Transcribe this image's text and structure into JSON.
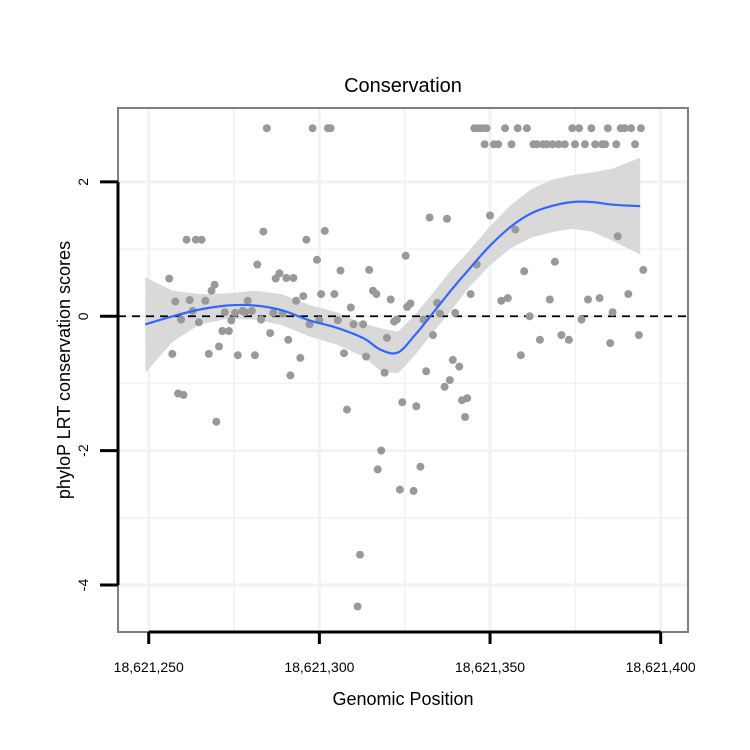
{
  "chart_data": {
    "type": "scatter",
    "title": "Conservation",
    "xlabel": "Genomic Position",
    "ylabel": "phyloP LRT conservation scores",
    "xlim": [
      18621241,
      18621408
    ],
    "ylim": [
      -4.7,
      3.1
    ],
    "x_ticks": [
      {
        "value": 18621250,
        "label": "18,621,250"
      },
      {
        "value": 18621300,
        "label": "18,621,300"
      },
      {
        "value": 18621350,
        "label": "18,621,350"
      },
      {
        "value": 18621400,
        "label": "18,621,400"
      }
    ],
    "y_ticks": [
      {
        "value": 2,
        "label": "2"
      },
      {
        "value": 0,
        "label": "0"
      },
      {
        "value": -2,
        "label": "-2"
      },
      {
        "value": -4,
        "label": "-4"
      }
    ],
    "x_minor_grid": [
      18621275,
      18621325,
      18621375
    ],
    "y_minor_grid": [
      1,
      -1,
      -3
    ],
    "reference_line": {
      "y": 0,
      "style": "dashed"
    },
    "colors": {
      "point": "#999999",
      "line": "#3366FF",
      "ribbon": "#D9D9D9",
      "panel_border": "#7F7F7F",
      "grid": "#F2F2F2",
      "reference": "#000000"
    },
    "points": [
      [
        18621256.0,
        0.56
      ],
      [
        18621256.9,
        -0.56
      ],
      [
        18621257.8,
        0.22
      ],
      [
        18621258.6,
        -1.15
      ],
      [
        18621259.5,
        -0.05
      ],
      [
        18621260.2,
        -1.17
      ],
      [
        18621261.1,
        1.14
      ],
      [
        18621262.0,
        0.24
      ],
      [
        18621262.9,
        0.08
      ],
      [
        18621263.8,
        1.14
      ],
      [
        18621264.7,
        -0.09
      ],
      [
        18621265.5,
        1.14
      ],
      [
        18621266.6,
        0.23
      ],
      [
        18621267.6,
        -0.56
      ],
      [
        18621268.4,
        0.38
      ],
      [
        18621269.3,
        0.47
      ],
      [
        18621269.8,
        -1.57
      ],
      [
        18621270.6,
        -0.45
      ],
      [
        18621271.6,
        -0.22
      ],
      [
        18621272.3,
        0.06
      ],
      [
        18621273.5,
        -0.22
      ],
      [
        18621274.2,
        -0.06
      ],
      [
        18621275.3,
        0.05
      ],
      [
        18621276.1,
        -0.58
      ],
      [
        18621277.5,
        0.08
      ],
      [
        18621278.2,
        0.06
      ],
      [
        18621279.0,
        0.23
      ],
      [
        18621280.2,
        0.08
      ],
      [
        18621281.1,
        -0.58
      ],
      [
        18621281.8,
        0.77
      ],
      [
        18621282.9,
        -0.05
      ],
      [
        18621283.6,
        1.26
      ],
      [
        18621284.6,
        2.8
      ],
      [
        18621285.6,
        -0.25
      ],
      [
        18621286.5,
        0.05
      ],
      [
        18621287.2,
        0.56
      ],
      [
        18621288.3,
        0.64
      ],
      [
        18621289.2,
        0.04
      ],
      [
        18621290.3,
        0.57
      ],
      [
        18621290.9,
        -0.35
      ],
      [
        18621291.5,
        -0.88
      ],
      [
        18621292.4,
        0.57
      ],
      [
        18621293.2,
        0.23
      ],
      [
        18621294.4,
        -0.62
      ],
      [
        18621295.3,
        0.3
      ],
      [
        18621296.2,
        1.14
      ],
      [
        18621297.1,
        -0.12
      ],
      [
        18621298.0,
        2.8
      ],
      [
        18621299.3,
        0.84
      ],
      [
        18621300.0,
        -0.06
      ],
      [
        18621300.5,
        0.33
      ],
      [
        18621301.6,
        1.27
      ],
      [
        18621302.5,
        2.8
      ],
      [
        18621303.3,
        2.8
      ],
      [
        18621304.4,
        0.33
      ],
      [
        18621305.4,
        -0.06
      ],
      [
        18621306.2,
        0.68
      ],
      [
        18621307.2,
        -0.55
      ],
      [
        18621308.1,
        -1.39
      ],
      [
        18621309.2,
        0.13
      ],
      [
        18621310.0,
        -0.12
      ],
      [
        18621311.2,
        -4.32
      ],
      [
        18621311.9,
        -3.55
      ],
      [
        18621312.8,
        -0.12
      ],
      [
        18621313.7,
        -0.6
      ],
      [
        18621314.6,
        0.69
      ],
      [
        18621315.7,
        0.38
      ],
      [
        18621316.7,
        0.33
      ],
      [
        18621317.1,
        -2.28
      ],
      [
        18621318.1,
        -2.0
      ],
      [
        18621319.1,
        -0.84
      ],
      [
        18621319.8,
        -0.32
      ],
      [
        18621320.9,
        0.25
      ],
      [
        18621321.9,
        -0.08
      ],
      [
        18621322.7,
        -0.05
      ],
      [
        18621323.6,
        -2.58
      ],
      [
        18621324.3,
        -1.28
      ],
      [
        18621325.3,
        0.9
      ],
      [
        18621325.7,
        0.14
      ],
      [
        18621326.7,
        0.19
      ],
      [
        18621327.6,
        -2.6
      ],
      [
        18621328.4,
        -1.34
      ],
      [
        18621329.6,
        -2.24
      ],
      [
        18621330.5,
        -0.05
      ],
      [
        18621331.3,
        -0.82
      ],
      [
        18621332.3,
        1.47
      ],
      [
        18621333.3,
        -0.28
      ],
      [
        18621334.5,
        0.2
      ],
      [
        18621335.3,
        0.04
      ],
      [
        18621336.7,
        -1.05
      ],
      [
        18621337.4,
        1.45
      ],
      [
        18621338.2,
        -0.95
      ],
      [
        18621339.1,
        -0.65
      ],
      [
        18621339.8,
        0.05
      ],
      [
        18621341.0,
        -0.75
      ],
      [
        18621341.8,
        -1.25
      ],
      [
        18621342.7,
        -1.5
      ],
      [
        18621343.3,
        -1.22
      ],
      [
        18621344.3,
        0.33
      ],
      [
        18621345.4,
        2.8
      ],
      [
        18621346.1,
        0.77
      ],
      [
        18621346.6,
        2.8
      ],
      [
        18621347.7,
        2.8
      ],
      [
        18621348.4,
        2.56
      ],
      [
        18621349.0,
        2.8
      ],
      [
        18621350.0,
        1.5
      ],
      [
        18621351.1,
        2.56
      ],
      [
        18621352.4,
        2.56
      ],
      [
        18621353.3,
        0.23
      ],
      [
        18621354.4,
        2.8
      ],
      [
        18621355.2,
        0.27
      ],
      [
        18621356.3,
        2.56
      ],
      [
        18621357.4,
        1.29
      ],
      [
        18621358.1,
        2.8
      ],
      [
        18621359.0,
        -0.58
      ],
      [
        18621360.0,
        0.67
      ],
      [
        18621360.8,
        2.8
      ],
      [
        18621361.6,
        0.0
      ],
      [
        18621362.7,
        2.56
      ],
      [
        18621363.7,
        2.56
      ],
      [
        18621364.6,
        -0.35
      ],
      [
        18621365.5,
        2.56
      ],
      [
        18621366.6,
        2.56
      ],
      [
        18621367.5,
        0.25
      ],
      [
        18621368.3,
        2.56
      ],
      [
        18621369.0,
        0.81
      ],
      [
        18621370.1,
        2.56
      ],
      [
        18621370.9,
        -0.28
      ],
      [
        18621371.9,
        2.56
      ],
      [
        18621373.1,
        -0.35
      ],
      [
        18621374.1,
        2.8
      ],
      [
        18621374.9,
        2.56
      ],
      [
        18621376.1,
        2.8
      ],
      [
        18621376.8,
        -0.05
      ],
      [
        18621377.8,
        2.56
      ],
      [
        18621378.7,
        0.25
      ],
      [
        18621379.7,
        2.8
      ],
      [
        18621380.8,
        2.56
      ],
      [
        18621382.1,
        0.27
      ],
      [
        18621382.8,
        2.56
      ],
      [
        18621383.7,
        2.56
      ],
      [
        18621384.5,
        2.8
      ],
      [
        18621385.2,
        -0.4
      ],
      [
        18621385.9,
        0.06
      ],
      [
        18621387.0,
        2.56
      ],
      [
        18621387.4,
        1.19
      ],
      [
        18621388.3,
        2.8
      ],
      [
        18621389.4,
        2.8
      ],
      [
        18621390.5,
        0.33
      ],
      [
        18621391.3,
        2.8
      ],
      [
        18621392.5,
        2.56
      ],
      [
        18621393.6,
        -0.28
      ],
      [
        18621394.2,
        2.8
      ],
      [
        18621394.9,
        0.69
      ]
    ],
    "smooth": {
      "method": "loess",
      "x": [
        18621249,
        18621257,
        18621265,
        18621273,
        18621281,
        18621289,
        18621297,
        18621305,
        18621313,
        18621318,
        18621323,
        18621328,
        18621333,
        18621338,
        18621344,
        18621350,
        18621356,
        18621362,
        18621368,
        18621374,
        18621380,
        18621386,
        18621394
      ],
      "y": [
        -0.12,
        0.0,
        0.1,
        0.16,
        0.16,
        0.09,
        -0.06,
        -0.17,
        -0.33,
        -0.5,
        -0.54,
        -0.28,
        0.03,
        0.35,
        0.71,
        1.05,
        1.33,
        1.53,
        1.64,
        1.7,
        1.7,
        1.66,
        1.64
      ],
      "upper": [
        0.58,
        0.38,
        0.33,
        0.34,
        0.38,
        0.33,
        0.17,
        0.06,
        -0.11,
        -0.18,
        -0.23,
        0.02,
        0.33,
        0.65,
        0.98,
        1.34,
        1.65,
        1.89,
        2.03,
        2.1,
        2.14,
        2.2,
        2.36
      ],
      "lower": [
        -0.84,
        -0.38,
        -0.12,
        -0.04,
        -0.05,
        -0.13,
        -0.3,
        -0.42,
        -0.6,
        -0.82,
        -0.85,
        -0.58,
        -0.26,
        0.05,
        0.44,
        0.76,
        1.01,
        1.17,
        1.25,
        1.3,
        1.26,
        1.12,
        0.92
      ]
    }
  }
}
